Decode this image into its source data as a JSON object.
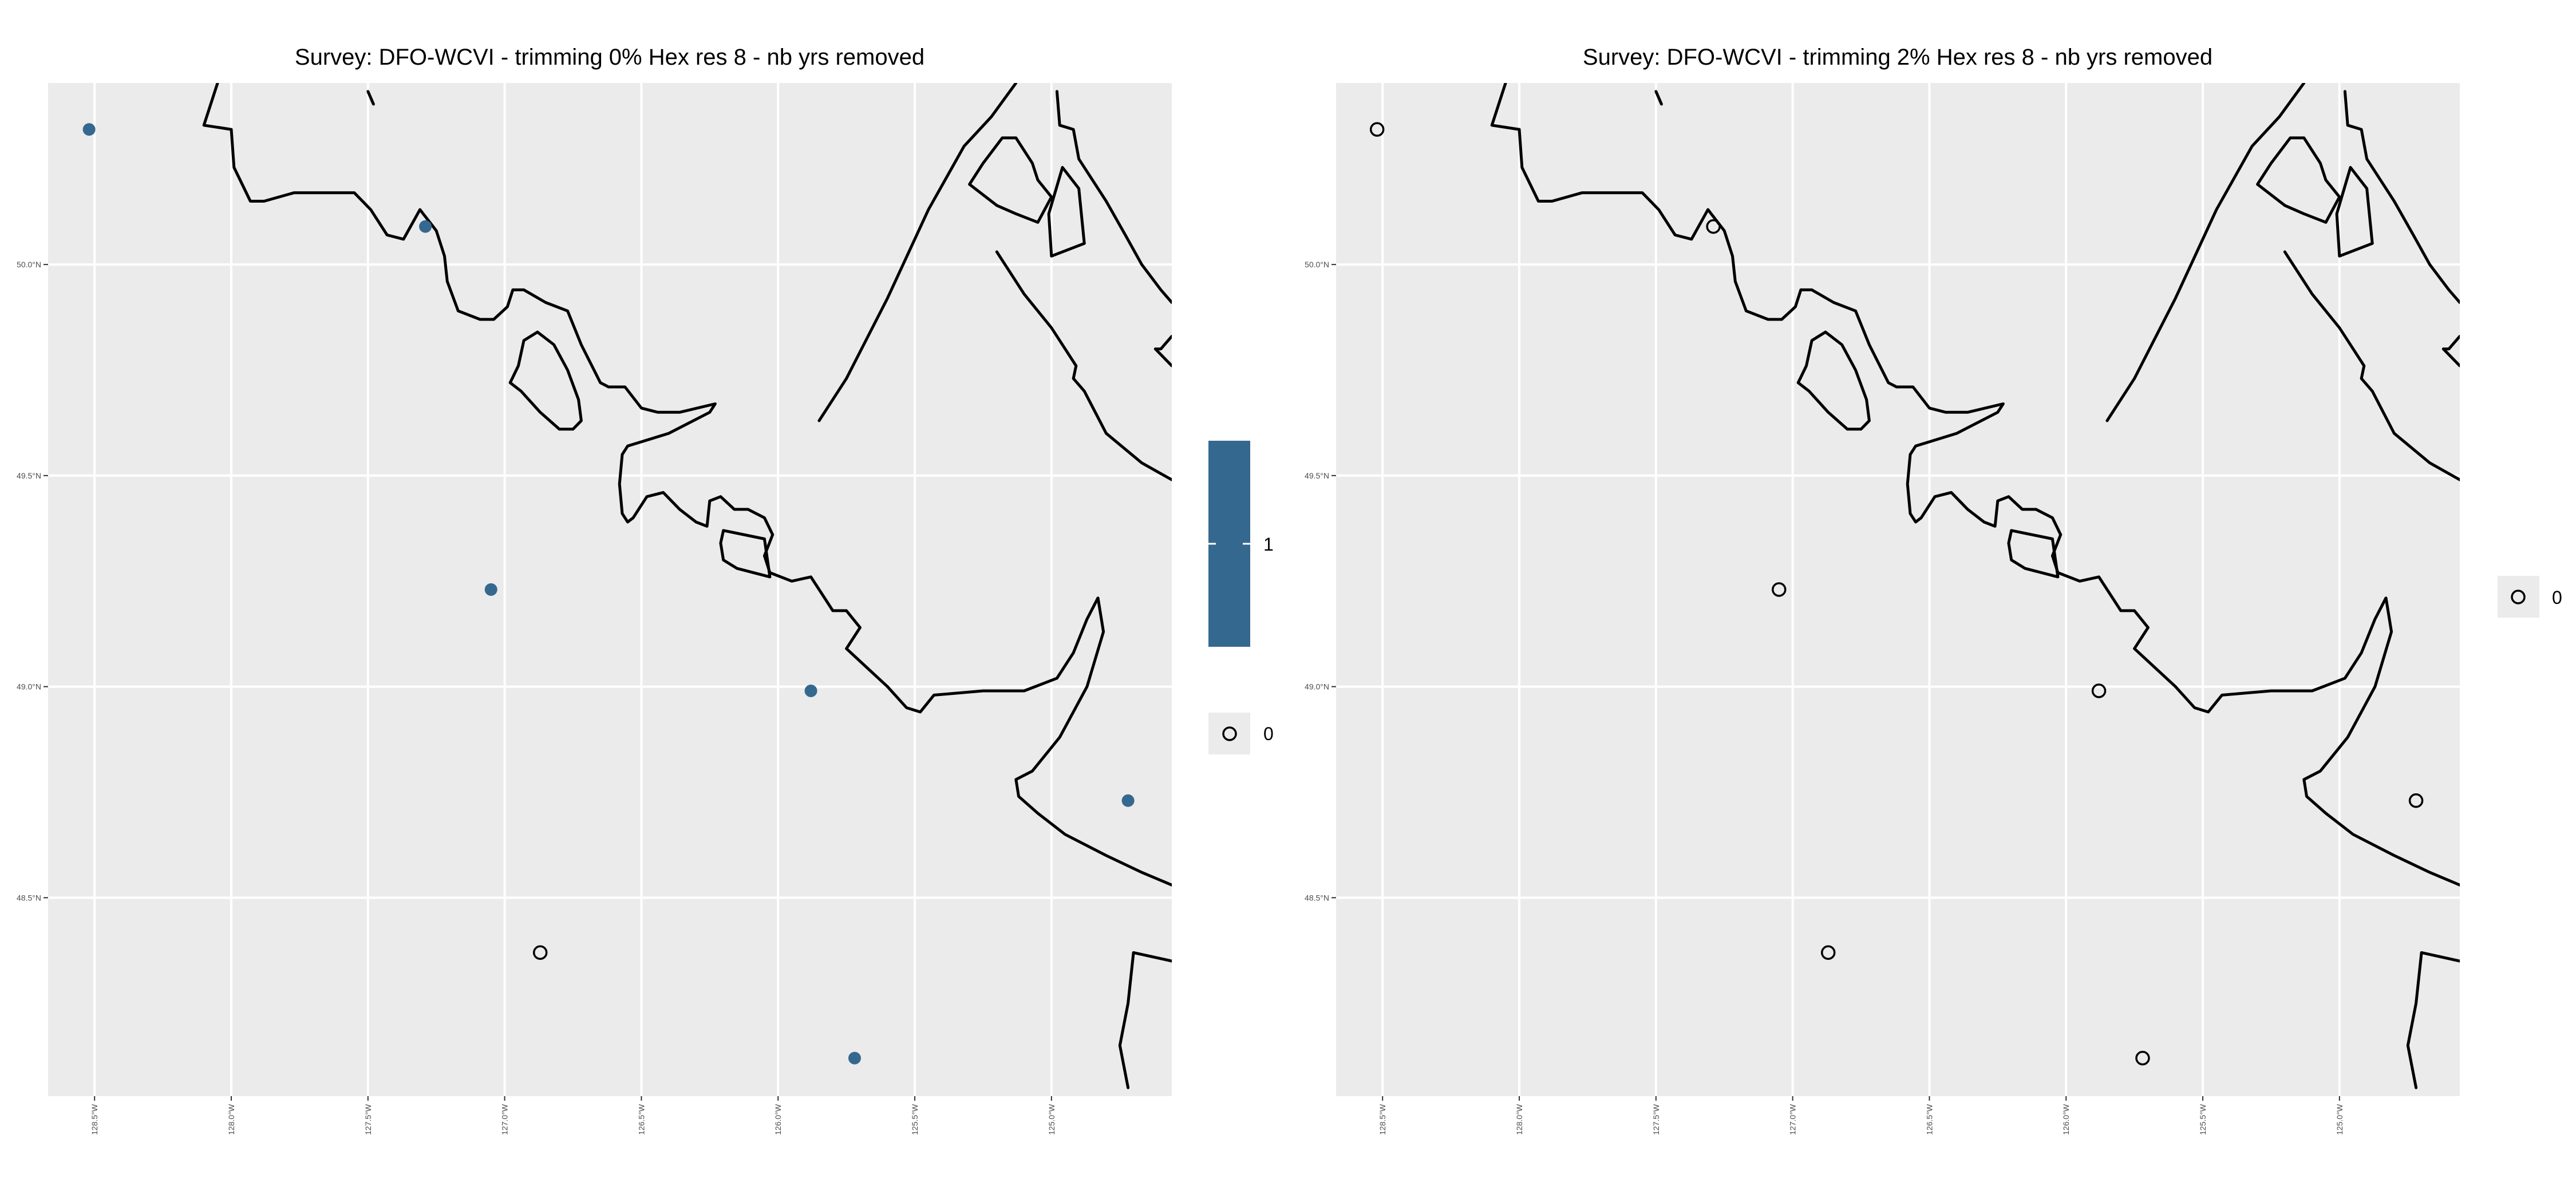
{
  "panels": [
    {
      "title": "Survey: DFO-WCVI - trimming 0% Hex res 8 - nb yrs removed",
      "legend": {
        "fill_label": "1",
        "point_label": "0"
      }
    },
    {
      "title": "Survey: DFO-WCVI - trimming 2% Hex res 8 - nb yrs removed",
      "legend": {
        "point_label": "0"
      }
    }
  ],
  "colors": {
    "panel_bg": "#ebebeb",
    "grid": "#ffffff",
    "fill_1": "#35688f",
    "coast": "#000000"
  },
  "map_data": {
    "x_ticks": [
      {
        "lon": -128.5,
        "label": "128.5°W"
      },
      {
        "lon": -128.0,
        "label": "128.0°W"
      },
      {
        "lon": -127.5,
        "label": "127.5°W"
      },
      {
        "lon": -127.0,
        "label": "127.0°W"
      },
      {
        "lon": -126.5,
        "label": "126.5°W"
      },
      {
        "lon": -126.0,
        "label": "126.0°W"
      },
      {
        "lon": -125.5,
        "label": "125.5°W"
      },
      {
        "lon": -125.0,
        "label": "125.0°W"
      }
    ],
    "y_ticks": [
      {
        "lat": 50.0,
        "label": "50.0°N"
      },
      {
        "lat": 49.5,
        "label": "49.5°N"
      },
      {
        "lat": 49.0,
        "label": "49.0°N"
      },
      {
        "lat": 48.5,
        "label": "48.5°N"
      }
    ],
    "lon_range": [
      -128.67,
      -124.56
    ],
    "lat_range": [
      48.03,
      50.43
    ],
    "stations": [
      {
        "lon": -128.52,
        "lat": 50.32,
        "value_0pct": 1,
        "value_2pct": 0
      },
      {
        "lon": -127.29,
        "lat": 50.09,
        "value_0pct": 1,
        "value_2pct": 0
      },
      {
        "lon": -127.05,
        "lat": 49.23,
        "value_0pct": 1,
        "value_2pct": 0
      },
      {
        "lon": -126.87,
        "lat": 48.37,
        "value_0pct": 0,
        "value_2pct": 0
      },
      {
        "lon": -125.88,
        "lat": 48.99,
        "value_0pct": 1,
        "value_2pct": 0
      },
      {
        "lon": -125.72,
        "lat": 48.12,
        "value_0pct": 1,
        "value_2pct": 0
      },
      {
        "lon": -124.72,
        "lat": 48.73,
        "value_0pct": 1,
        "value_2pct": 0
      }
    ],
    "coastline": [
      [
        [
          -127.5,
          50.41
        ],
        [
          -127.48,
          50.38
        ]
      ],
      [
        [
          -128.05,
          50.43
        ],
        [
          -128.1,
          50.33
        ],
        [
          -128.0,
          50.32
        ],
        [
          -127.99,
          50.23
        ],
        [
          -127.93,
          50.15
        ],
        [
          -127.88,
          50.15
        ],
        [
          -127.77,
          50.17
        ],
        [
          -127.55,
          50.17
        ],
        [
          -127.49,
          50.13
        ],
        [
          -127.43,
          50.07
        ],
        [
          -127.37,
          50.06
        ],
        [
          -127.31,
          50.13
        ],
        [
          -127.25,
          50.08
        ],
        [
          -127.22,
          50.02
        ],
        [
          -127.21,
          49.96
        ],
        [
          -127.17,
          49.89
        ],
        [
          -127.09,
          49.87
        ],
        [
          -127.04,
          49.87
        ],
        [
          -126.99,
          49.9
        ],
        [
          -126.97,
          49.94
        ],
        [
          -126.93,
          49.94
        ],
        [
          -126.85,
          49.91
        ],
        [
          -126.77,
          49.89
        ],
        [
          -126.72,
          49.81
        ],
        [
          -126.65,
          49.72
        ],
        [
          -126.62,
          49.71
        ],
        [
          -126.56,
          49.71
        ],
        [
          -126.5,
          49.66
        ],
        [
          -126.44,
          49.65
        ],
        [
          -126.36,
          49.65
        ],
        [
          -126.23,
          49.67
        ],
        [
          -126.25,
          49.65
        ],
        [
          -126.4,
          49.6
        ],
        [
          -126.5,
          49.58
        ],
        [
          -126.55,
          49.57
        ],
        [
          -126.57,
          49.55
        ],
        [
          -126.58,
          49.48
        ],
        [
          -126.57,
          49.41
        ],
        [
          -126.55,
          49.39
        ],
        [
          -126.53,
          49.4
        ],
        [
          -126.48,
          49.45
        ],
        [
          -126.42,
          49.46
        ],
        [
          -126.36,
          49.42
        ],
        [
          -126.3,
          49.39
        ],
        [
          -126.26,
          49.38
        ],
        [
          -126.25,
          49.44
        ],
        [
          -126.21,
          49.45
        ],
        [
          -126.16,
          49.42
        ],
        [
          -126.11,
          49.42
        ],
        [
          -126.05,
          49.4
        ],
        [
          -126.02,
          49.36
        ],
        [
          -126.05,
          49.31
        ],
        [
          -126.03,
          49.27
        ],
        [
          -125.95,
          49.25
        ],
        [
          -125.88,
          49.26
        ],
        [
          -125.84,
          49.22
        ],
        [
          -125.8,
          49.18
        ],
        [
          -125.75,
          49.18
        ],
        [
          -125.7,
          49.14
        ],
        [
          -125.75,
          49.09
        ],
        [
          -125.6,
          49.0
        ],
        [
          -125.53,
          48.95
        ],
        [
          -125.48,
          48.94
        ],
        [
          -125.43,
          48.98
        ],
        [
          -125.25,
          48.99
        ],
        [
          -125.1,
          48.99
        ],
        [
          -124.98,
          49.02
        ],
        [
          -124.92,
          49.08
        ],
        [
          -124.87,
          49.16
        ],
        [
          -124.83,
          49.21
        ],
        [
          -124.81,
          49.13
        ],
        [
          -124.87,
          49.0
        ],
        [
          -124.97,
          48.88
        ],
        [
          -125.07,
          48.8
        ],
        [
          -125.13,
          48.78
        ],
        [
          -125.12,
          48.74
        ],
        [
          -125.05,
          48.7
        ],
        [
          -124.95,
          48.65
        ],
        [
          -124.8,
          48.6
        ],
        [
          -124.67,
          48.56
        ],
        [
          -124.56,
          48.53
        ]
      ],
      [
        [
          -126.95,
          49.76
        ],
        [
          -126.93,
          49.82
        ],
        [
          -126.88,
          49.84
        ],
        [
          -126.82,
          49.81
        ],
        [
          -126.77,
          49.75
        ],
        [
          -126.73,
          49.68
        ],
        [
          -126.72,
          49.63
        ],
        [
          -126.75,
          49.61
        ],
        [
          -126.8,
          49.61
        ],
        [
          -126.87,
          49.65
        ],
        [
          -126.94,
          49.7
        ],
        [
          -126.98,
          49.72
        ],
        [
          -126.95,
          49.76
        ]
      ],
      [
        [
          -126.2,
          49.37
        ],
        [
          -126.05,
          49.35
        ],
        [
          -126.03,
          49.26
        ],
        [
          -126.15,
          49.28
        ],
        [
          -126.2,
          49.3
        ],
        [
          -126.21,
          49.34
        ],
        [
          -126.2,
          49.37
        ]
      ],
      [
        [
          -124.98,
          50.41
        ],
        [
          -124.97,
          50.33
        ],
        [
          -124.92,
          50.32
        ],
        [
          -124.9,
          50.25
        ],
        [
          -124.8,
          50.15
        ],
        [
          -124.73,
          50.07
        ],
        [
          -124.67,
          50.0
        ],
        [
          -124.6,
          49.94
        ],
        [
          -124.56,
          49.91
        ]
      ],
      [
        [
          -125.13,
          50.43
        ],
        [
          -125.22,
          50.35
        ],
        [
          -125.32,
          50.28
        ],
        [
          -125.45,
          50.13
        ],
        [
          -125.6,
          49.92
        ],
        [
          -125.75,
          49.73
        ],
        [
          -125.85,
          49.63
        ]
      ],
      [
        [
          -125.0,
          50.16
        ],
        [
          -125.05,
          50.2
        ],
        [
          -125.07,
          50.24
        ],
        [
          -125.13,
          50.3
        ],
        [
          -125.18,
          50.3
        ],
        [
          -125.25,
          50.24
        ],
        [
          -125.3,
          50.19
        ],
        [
          -125.2,
          50.14
        ],
        [
          -125.13,
          50.12
        ],
        [
          -125.05,
          50.1
        ],
        [
          -125.0,
          50.16
        ]
      ],
      [
        [
          -125.0,
          50.02
        ],
        [
          -125.01,
          50.12
        ],
        [
          -124.96,
          50.23
        ],
        [
          -124.9,
          50.18
        ],
        [
          -124.88,
          50.05
        ],
        [
          -125.0,
          50.02
        ]
      ],
      [
        [
          -124.56,
          49.76
        ],
        [
          -124.62,
          49.8
        ],
        [
          -124.6,
          49.8
        ],
        [
          -124.56,
          49.83
        ]
      ],
      [
        [
          -124.56,
          49.49
        ],
        [
          -124.67,
          49.53
        ],
        [
          -124.8,
          49.6
        ],
        [
          -124.88,
          49.7
        ],
        [
          -124.92,
          49.73
        ],
        [
          -124.91,
          49.76
        ],
        [
          -125.0,
          49.85
        ],
        [
          -125.1,
          49.93
        ],
        [
          -125.2,
          50.03
        ]
      ],
      [
        [
          -124.56,
          48.35
        ],
        [
          -124.7,
          48.37
        ],
        [
          -124.72,
          48.25
        ],
        [
          -124.75,
          48.15
        ],
        [
          -124.72,
          48.05
        ]
      ]
    ]
  }
}
